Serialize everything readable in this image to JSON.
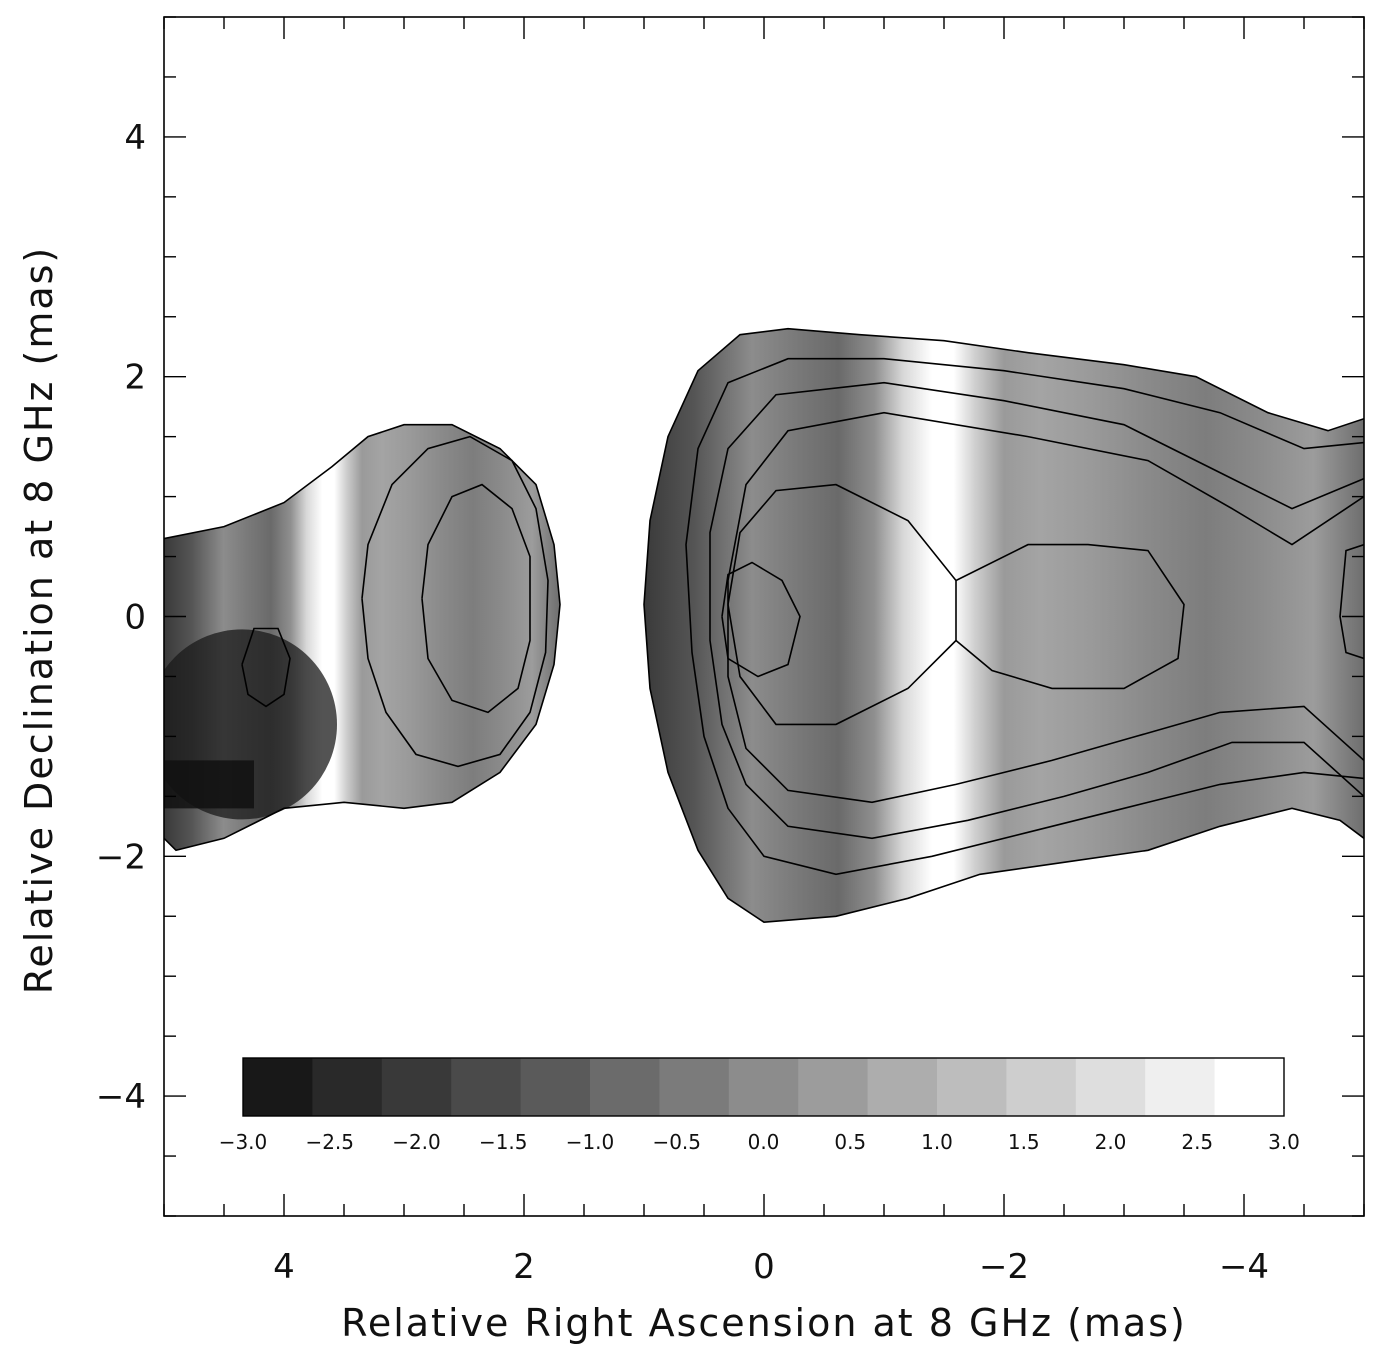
{
  "chart_data": {
    "type": "heatmap",
    "title": "",
    "xlabel": "Relative Right Ascension at 8 GHz (mas)",
    "ylabel": "Relative Declination at 8 GHz (mas)",
    "xlim": [
      5,
      -5
    ],
    "ylim": [
      -5,
      5
    ],
    "x_ticks": [
      4,
      2,
      0,
      -2,
      -4
    ],
    "y_ticks": [
      4,
      2,
      0,
      -2,
      -4
    ],
    "x_tick_labels": [
      "4",
      "2",
      "0",
      "−2",
      "−4"
    ],
    "y_tick_labels": [
      "4",
      "2",
      "0",
      "−2",
      "−4"
    ],
    "x_minor_step": 0.5,
    "y_minor_step": 0.5,
    "colormap": "grayscale",
    "colorbar": {
      "min": -3.0,
      "max": 3.0,
      "levels": 15,
      "tick_values": [
        -3.0,
        -2.5,
        -2.0,
        -1.5,
        -1.0,
        -0.5,
        0.0,
        0.5,
        1.0,
        1.5,
        2.0,
        2.5,
        3.0
      ],
      "tick_labels": [
        "−3.0",
        "−2.5",
        "−2.0",
        "−1.5",
        "−1.0",
        "−0.5",
        "0.0",
        "0.5",
        "1.0",
        "1.5",
        "2.0",
        "2.5",
        "3.0"
      ],
      "placement": "inside-bottom"
    },
    "components": [
      {
        "x": 2.45,
        "y": 0.15
      },
      {
        "x": 0.1,
        "y": 0.0
      },
      {
        "x": -3.2,
        "y": 0.0
      }
    ],
    "contours": [
      {
        "level": 1,
        "points": [
          [
            5.0,
            0.65
          ],
          [
            4.5,
            0.75
          ],
          [
            4.0,
            0.95
          ],
          [
            3.6,
            1.25
          ],
          [
            3.3,
            1.5
          ],
          [
            3.0,
            1.6
          ],
          [
            2.6,
            1.6
          ],
          [
            2.2,
            1.4
          ],
          [
            1.9,
            1.1
          ],
          [
            1.75,
            0.6
          ],
          [
            1.7,
            0.1
          ],
          [
            1.75,
            -0.4
          ],
          [
            1.9,
            -0.9
          ],
          [
            2.2,
            -1.3
          ],
          [
            2.6,
            -1.55
          ],
          [
            3.0,
            -1.6
          ],
          [
            3.5,
            -1.55
          ],
          [
            4.0,
            -1.6
          ],
          [
            4.5,
            -1.85
          ],
          [
            4.9,
            -1.95
          ],
          [
            5.0,
            -1.85
          ]
        ]
      },
      {
        "level": 2,
        "points": [
          [
            3.35,
            0.15
          ],
          [
            3.3,
            0.6
          ],
          [
            3.1,
            1.1
          ],
          [
            2.8,
            1.4
          ],
          [
            2.45,
            1.5
          ],
          [
            2.1,
            1.3
          ],
          [
            1.9,
            0.9
          ],
          [
            1.8,
            0.3
          ],
          [
            1.82,
            -0.3
          ],
          [
            1.95,
            -0.8
          ],
          [
            2.2,
            -1.15
          ],
          [
            2.55,
            -1.25
          ],
          [
            2.9,
            -1.15
          ],
          [
            3.15,
            -0.8
          ],
          [
            3.3,
            -0.35
          ],
          [
            3.35,
            0.15
          ]
        ]
      },
      {
        "level": 3,
        "points": [
          [
            2.85,
            0.15
          ],
          [
            2.8,
            0.6
          ],
          [
            2.6,
            1.0
          ],
          [
            2.35,
            1.1
          ],
          [
            2.1,
            0.9
          ],
          [
            1.95,
            0.5
          ],
          [
            1.95,
            -0.2
          ],
          [
            2.05,
            -0.6
          ],
          [
            2.3,
            -0.8
          ],
          [
            2.6,
            -0.7
          ],
          [
            2.8,
            -0.35
          ],
          [
            2.85,
            0.15
          ]
        ]
      },
      {
        "level": 4,
        "points": [
          [
            4.35,
            -0.4
          ],
          [
            4.25,
            -0.1
          ],
          [
            4.05,
            -0.1
          ],
          [
            3.95,
            -0.35
          ],
          [
            4.0,
            -0.65
          ],
          [
            4.15,
            -0.75
          ],
          [
            4.3,
            -0.65
          ],
          [
            4.35,
            -0.4
          ]
        ]
      },
      {
        "level": 1,
        "points": [
          [
            1.0,
            0.1
          ],
          [
            0.95,
            0.8
          ],
          [
            0.8,
            1.5
          ],
          [
            0.55,
            2.05
          ],
          [
            0.2,
            2.35
          ],
          [
            -0.2,
            2.4
          ],
          [
            -0.8,
            2.35
          ],
          [
            -1.5,
            2.3
          ],
          [
            -2.2,
            2.2
          ],
          [
            -3.0,
            2.1
          ],
          [
            -3.6,
            2.0
          ],
          [
            -4.2,
            1.7
          ],
          [
            -4.7,
            1.55
          ],
          [
            -5.0,
            1.65
          ]
        ]
      },
      {
        "level": 1,
        "points": [
          [
            1.0,
            0.1
          ],
          [
            0.95,
            -0.6
          ],
          [
            0.8,
            -1.3
          ],
          [
            0.55,
            -1.95
          ],
          [
            0.3,
            -2.35
          ],
          [
            0.0,
            -2.55
          ],
          [
            -0.6,
            -2.5
          ],
          [
            -1.2,
            -2.35
          ],
          [
            -1.8,
            -2.15
          ],
          [
            -2.5,
            -2.05
          ],
          [
            -3.2,
            -1.95
          ],
          [
            -3.8,
            -1.75
          ],
          [
            -4.4,
            -1.6
          ],
          [
            -4.8,
            -1.7
          ],
          [
            -5.0,
            -1.85
          ]
        ]
      },
      {
        "level": 2,
        "points": [
          [
            -5.0,
            1.45
          ],
          [
            -4.5,
            1.4
          ],
          [
            -3.8,
            1.7
          ],
          [
            -3.0,
            1.9
          ],
          [
            -2.0,
            2.05
          ],
          [
            -1.0,
            2.15
          ],
          [
            -0.2,
            2.15
          ],
          [
            0.3,
            1.95
          ],
          [
            0.55,
            1.4
          ],
          [
            0.65,
            0.6
          ],
          [
            0.6,
            -0.3
          ],
          [
            0.5,
            -1.0
          ],
          [
            0.3,
            -1.6
          ],
          [
            0.0,
            -2.0
          ],
          [
            -0.6,
            -2.15
          ],
          [
            -1.4,
            -2.0
          ],
          [
            -2.2,
            -1.8
          ],
          [
            -3.0,
            -1.6
          ],
          [
            -3.8,
            -1.4
          ],
          [
            -4.5,
            -1.3
          ],
          [
            -5.0,
            -1.35
          ]
        ]
      },
      {
        "level": 3,
        "points": [
          [
            -5.0,
            1.15
          ],
          [
            -4.4,
            0.9
          ],
          [
            -3.8,
            1.2
          ],
          [
            -3.0,
            1.6
          ],
          [
            -2.0,
            1.8
          ],
          [
            -1.0,
            1.95
          ],
          [
            -0.1,
            1.85
          ],
          [
            0.3,
            1.4
          ],
          [
            0.45,
            0.7
          ],
          [
            0.45,
            -0.2
          ],
          [
            0.35,
            -0.9
          ],
          [
            0.15,
            -1.4
          ],
          [
            -0.2,
            -1.75
          ],
          [
            -0.9,
            -1.85
          ],
          [
            -1.7,
            -1.7
          ],
          [
            -2.5,
            -1.5
          ],
          [
            -3.2,
            -1.3
          ],
          [
            -3.9,
            -1.05
          ],
          [
            -4.5,
            -1.05
          ],
          [
            -5.0,
            -1.5
          ]
        ]
      },
      {
        "level": 4,
        "points": [
          [
            -5.0,
            1.0
          ],
          [
            -4.4,
            0.6
          ],
          [
            -3.9,
            0.9
          ],
          [
            -3.2,
            1.3
          ],
          [
            -2.2,
            1.5
          ],
          [
            -1.0,
            1.7
          ],
          [
            -0.2,
            1.55
          ],
          [
            0.15,
            1.1
          ],
          [
            0.3,
            0.3
          ],
          [
            0.3,
            -0.5
          ],
          [
            0.15,
            -1.1
          ],
          [
            -0.2,
            -1.45
          ],
          [
            -0.9,
            -1.55
          ],
          [
            -1.6,
            -1.4
          ],
          [
            -2.4,
            -1.2
          ],
          [
            -3.1,
            -1.0
          ],
          [
            -3.8,
            -0.8
          ],
          [
            -4.5,
            -0.75
          ],
          [
            -5.0,
            -1.2
          ]
        ]
      },
      {
        "level": 5,
        "points": [
          [
            0.3,
            0.1
          ],
          [
            0.2,
            0.7
          ],
          [
            -0.1,
            1.05
          ],
          [
            -0.6,
            1.1
          ],
          [
            -1.2,
            0.8
          ],
          [
            -1.6,
            0.3
          ],
          [
            -1.6,
            -0.2
          ],
          [
            -1.2,
            -0.6
          ],
          [
            -0.6,
            -0.9
          ],
          [
            -0.1,
            -0.9
          ],
          [
            0.2,
            -0.5
          ],
          [
            0.3,
            0.1
          ]
        ]
      },
      {
        "level": 5,
        "points": [
          [
            -1.6,
            0.3
          ],
          [
            -2.2,
            0.6
          ],
          [
            -2.7,
            0.6
          ],
          [
            -3.2,
            0.55
          ],
          [
            -3.5,
            0.1
          ],
          [
            -3.45,
            -0.35
          ],
          [
            -3.0,
            -0.6
          ],
          [
            -2.4,
            -0.6
          ],
          [
            -1.9,
            -0.45
          ],
          [
            -1.6,
            -0.2
          ]
        ]
      },
      {
        "level": 6,
        "points": [
          [
            0.35,
            0.0
          ],
          [
            0.3,
            0.35
          ],
          [
            0.1,
            0.45
          ],
          [
            -0.15,
            0.3
          ],
          [
            -0.3,
            0.0
          ],
          [
            -0.2,
            -0.4
          ],
          [
            0.05,
            -0.5
          ],
          [
            0.3,
            -0.35
          ],
          [
            0.35,
            0.0
          ]
        ]
      },
      {
        "level": 6,
        "points": [
          [
            -5.0,
            0.6
          ],
          [
            -4.85,
            0.55
          ],
          [
            -4.8,
            0.0
          ],
          [
            -4.85,
            -0.3
          ],
          [
            -5.0,
            -0.35
          ]
        ]
      }
    ]
  }
}
